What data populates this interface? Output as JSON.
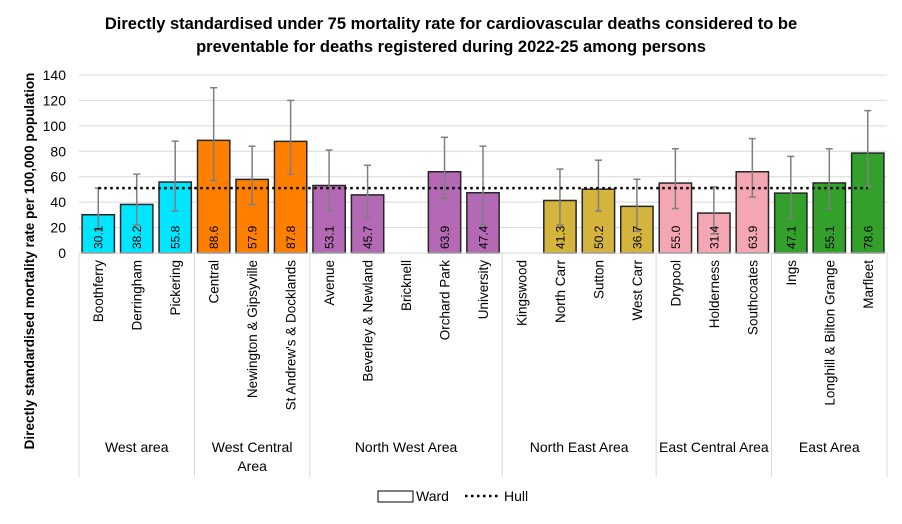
{
  "chart_data": {
    "type": "bar",
    "title": "Directly standardised under 75 mortality rate for cardiovascular deaths considered to be preventable for deaths registered during 2022-25 among persons",
    "title_lines": [
      "Directly standardised under 75 mortality rate for cardiovascular deaths considered to be",
      "preventable for deaths registered during 2022-25 among persons"
    ],
    "ylabel": "Directly standardised mortality rate per 100,000 population",
    "xlabel": "",
    "ylim": [
      0,
      140
    ],
    "yticks": [
      0,
      20,
      40,
      60,
      80,
      100,
      120,
      140
    ],
    "grid": true,
    "legend_position": "bottom",
    "legend": [
      {
        "label": "Ward",
        "type": "box"
      },
      {
        "label": "Hull",
        "type": "dotted-line"
      }
    ],
    "hull_value": 51,
    "groups": [
      {
        "label_lines": [
          "West area"
        ],
        "color": "#00E5FF",
        "wards": [
          {
            "name": "Boothferry",
            "value": 30.1,
            "lower": 18,
            "upper": 51
          },
          {
            "name": "Derringham",
            "value": 38.2,
            "lower": 22,
            "upper": 62
          },
          {
            "name": "Pickering",
            "value": 55.8,
            "lower": 33,
            "upper": 88
          }
        ]
      },
      {
        "label_lines": [
          "West Central",
          "Area"
        ],
        "color": "#FF8000",
        "wards": [
          {
            "name": "Central",
            "value": 88.6,
            "lower": 57,
            "upper": 130
          },
          {
            "name": "Newington & Gipsyville",
            "value": 57.9,
            "lower": 38,
            "upper": 84
          },
          {
            "name": "St Andrew's & Docklands",
            "value": 87.8,
            "lower": 62,
            "upper": 120
          }
        ]
      },
      {
        "label_lines": [
          "North West Area"
        ],
        "color": "#B469B4",
        "wards": [
          {
            "name": "Avenue",
            "value": 53.1,
            "lower": 33,
            "upper": 81
          },
          {
            "name": "Beverley & Newland",
            "value": 45.7,
            "lower": 28,
            "upper": 69
          },
          {
            "name": "Bricknell",
            "value": null,
            "lower": null,
            "upper": null
          },
          {
            "name": "Orchard Park",
            "value": 63.9,
            "lower": 43,
            "upper": 91
          },
          {
            "name": "University",
            "value": 47.4,
            "lower": 22,
            "upper": 84
          }
        ]
      },
      {
        "label_lines": [
          "North East Area"
        ],
        "color": "#D4B43C",
        "wards": [
          {
            "name": "Kingswood",
            "value": null,
            "lower": null,
            "upper": null
          },
          {
            "name": "North Carr",
            "value": 41.3,
            "lower": 22,
            "upper": 66
          },
          {
            "name": "Sutton",
            "value": 50.2,
            "lower": 33,
            "upper": 73
          },
          {
            "name": "West Carr",
            "value": 36.7,
            "lower": 17,
            "upper": 58
          }
        ]
      },
      {
        "label_lines": [
          "East Central Area"
        ],
        "color": "#F4A7B2",
        "wards": [
          {
            "name": "Drypool",
            "value": 55.0,
            "lower": 35,
            "upper": 82
          },
          {
            "name": "Holderness",
            "value": 31.4,
            "lower": 15,
            "upper": 52
          },
          {
            "name": "Southcoates",
            "value": 63.9,
            "lower": 44,
            "upper": 90
          }
        ]
      },
      {
        "label_lines": [
          "East Area"
        ],
        "color": "#33A02C",
        "wards": [
          {
            "name": "Ings",
            "value": 47.1,
            "lower": 27,
            "upper": 76
          },
          {
            "name": "Longhill & Bilton Grange",
            "value": 55.1,
            "lower": 35,
            "upper": 82
          },
          {
            "name": "Marfleet",
            "value": 78.6,
            "lower": 52,
            "upper": 112
          }
        ]
      }
    ]
  }
}
